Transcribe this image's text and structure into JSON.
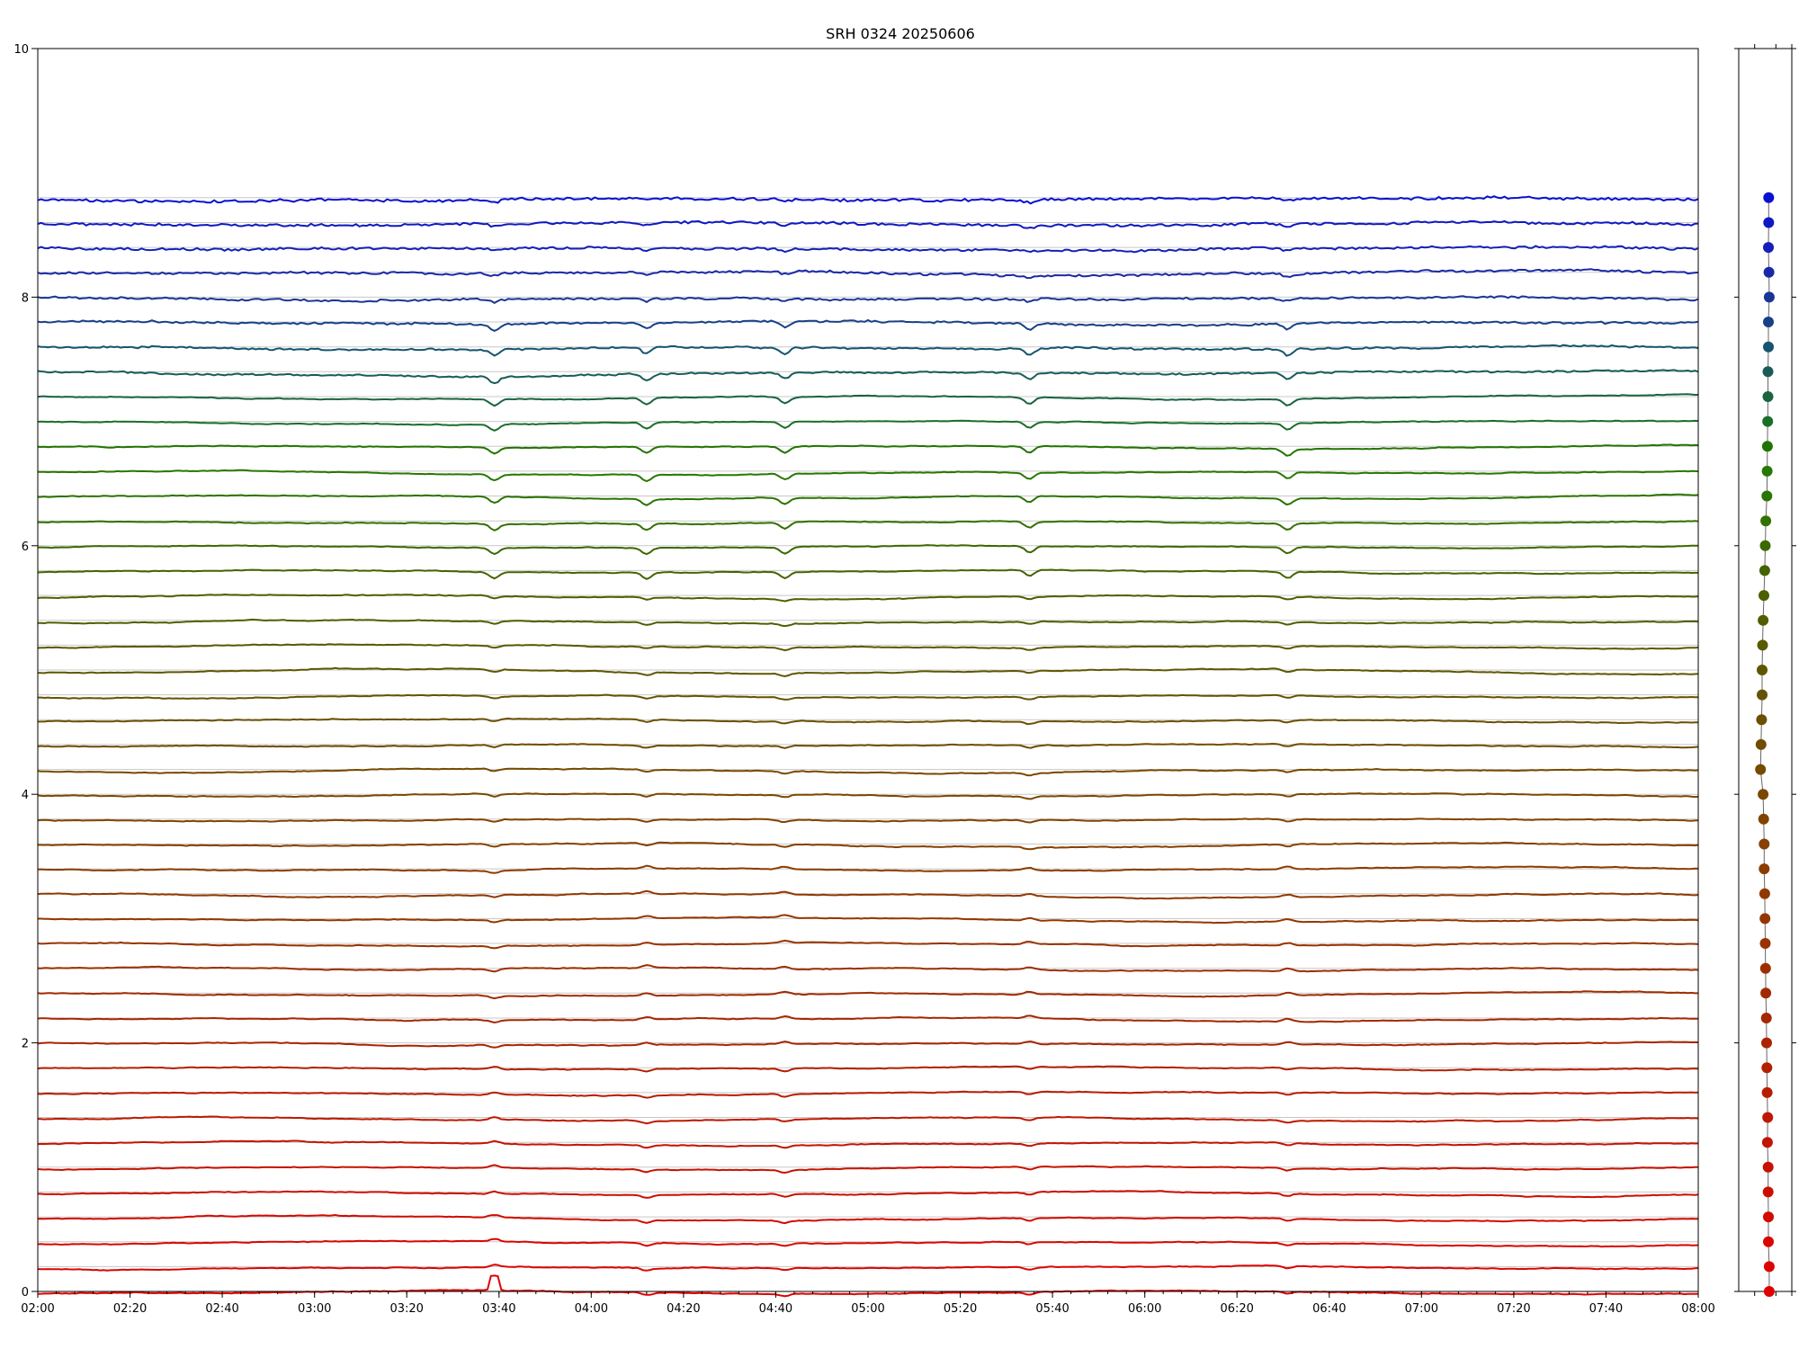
{
  "chart_data": [
    {
      "type": "line",
      "title": "SRH 0324 20250606",
      "xlabel": "",
      "ylabel": "",
      "xlim": [
        "02:00",
        "08:00"
      ],
      "ylim": [
        0,
        10
      ],
      "x_ticks": [
        "02:00",
        "02:20",
        "02:40",
        "03:00",
        "03:20",
        "03:40",
        "04:00",
        "04:20",
        "04:40",
        "05:00",
        "05:20",
        "05:40",
        "06:00",
        "06:20",
        "06:40",
        "07:00",
        "07:20",
        "07:40",
        "08:00"
      ],
      "y_ticks": [
        0,
        2,
        4,
        6,
        8,
        10
      ],
      "grid": "horizontal lines at each trace baseline",
      "legend": "none",
      "baselines": [
        0.0,
        0.2,
        0.4,
        0.6,
        0.8,
        1.0,
        1.2,
        1.4,
        1.6,
        1.8,
        2.0,
        2.2,
        2.4,
        2.6,
        2.8,
        3.0,
        3.2,
        3.4,
        3.6,
        3.8,
        4.0,
        4.2,
        4.4,
        4.6,
        4.8,
        5.0,
        5.2,
        5.4,
        5.6,
        5.8,
        6.0,
        6.2,
        6.4,
        6.6,
        6.8,
        7.0,
        7.2,
        7.4,
        7.6,
        7.8,
        8.0,
        8.2,
        8.4,
        8.6,
        8.8
      ],
      "colors": [
        "#e00000",
        "#dc0500",
        "#d80700",
        "#d20a00",
        "#cc0e00",
        "#c61200",
        "#c21500",
        "#bd1800",
        "#b81c00",
        "#b22000",
        "#aa2400",
        "#a42800",
        "#a02b00",
        "#9c2f00",
        "#983300",
        "#943600",
        "#903800",
        "#8b3c00",
        "#864000",
        "#804400",
        "#7c4700",
        "#774a00",
        "#704c00",
        "#6a5000",
        "#645400",
        "#5e5600",
        "#585900",
        "#525d00",
        "#4c6000",
        "#446400",
        "#3c6800",
        "#347000",
        "#2c7400",
        "#277800",
        "#227400",
        "#1b6e28",
        "#1a6440",
        "#185c58",
        "#165470",
        "#184088",
        "#1a3498",
        "#1a28a8",
        "#1420b8",
        "#1018c4",
        "#0a10d0"
      ],
      "events": [
        "03:39",
        "04:12",
        "04:42",
        "05:35",
        "06:31"
      ]
    },
    {
      "type": "scatter",
      "title": "",
      "y_values": [
        0.0,
        0.2,
        0.4,
        0.6,
        0.8,
        1.0,
        1.2,
        1.4,
        1.6,
        1.8,
        2.0,
        2.2,
        2.4,
        2.6,
        2.8,
        3.0,
        3.2,
        3.4,
        3.6,
        3.8,
        4.0,
        4.2,
        4.4,
        4.6,
        4.8,
        5.0,
        5.2,
        5.4,
        5.6,
        5.8,
        6.0,
        6.2,
        6.4,
        6.6,
        6.8,
        7.0,
        7.2,
        7.4,
        7.6,
        7.8,
        8.0,
        8.2,
        8.4,
        8.6,
        8.8
      ],
      "x_values": [
        0.15,
        0.15,
        0.12,
        0.12,
        0.11,
        0.11,
        0.08,
        0.09,
        0.07,
        0.06,
        0.05,
        0.04,
        0.02,
        0.01,
        0.0,
        -0.01,
        -0.02,
        -0.04,
        -0.04,
        -0.06,
        -0.08,
        -0.18,
        -0.16,
        -0.14,
        -0.12,
        -0.12,
        -0.1,
        -0.08,
        -0.05,
        -0.02,
        0.0,
        0.02,
        0.06,
        0.07,
        0.08,
        0.09,
        0.1,
        0.1,
        0.12,
        0.12,
        0.15,
        0.14,
        0.12,
        0.13,
        0.13
      ],
      "xlim": [
        -1,
        1
      ],
      "ylim": [
        0,
        10
      ],
      "colors_from": "same as trace colors"
    }
  ]
}
